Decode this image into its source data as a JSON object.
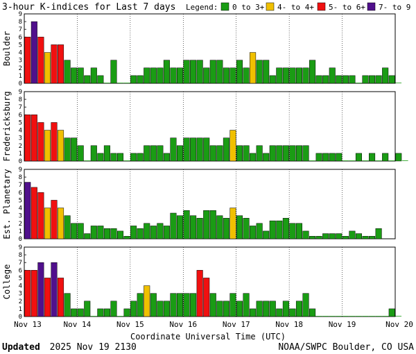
{
  "title": "3-hour K-indices for Last 7 days",
  "legend": {
    "label": "Legend:",
    "items": [
      {
        "label": "0 to 3+",
        "color": "#1a9c14"
      },
      {
        "label": "4- to 4+",
        "color": "#f0c000"
      },
      {
        "label": "5- to 6+",
        "color": "#f01010"
      },
      {
        "label": "7- to 9",
        "color": "#50108c"
      }
    ]
  },
  "footer": {
    "updated_label": "Updated",
    "updated_value": "2025 Nov 19 2130",
    "source": "NOAA/SWPC Boulder, CO USA"
  },
  "chart_data": {
    "type": "bar",
    "xlabel": "Coordinate Universal Time (UTC)",
    "x_ticks": [
      "Nov 13",
      "Nov 14",
      "Nov 15",
      "Nov 16",
      "Nov 17",
      "Nov 18",
      "Nov 19",
      "Nov 20"
    ],
    "y_ticks": [
      "0",
      "1",
      "2",
      "3",
      "4",
      "5",
      "6",
      "7",
      "8",
      "9"
    ],
    "ylim": [
      0,
      9
    ],
    "bars_per_day": 8,
    "colors": {
      "low": "#1a9c14",
      "moderate": "#f0c000",
      "high": "#f01010",
      "severe": "#50108c"
    },
    "panels": [
      {
        "name": "Boulder",
        "values": [
          6,
          8,
          6,
          4,
          5,
          5,
          3,
          2,
          2,
          1,
          2,
          1,
          0,
          3,
          0,
          0,
          1,
          1,
          2,
          2,
          2,
          3,
          2,
          2,
          3,
          3,
          3,
          2,
          3,
          3,
          2,
          2,
          3,
          2,
          4,
          3,
          3,
          1,
          2,
          2,
          2,
          2,
          2,
          3,
          1,
          1,
          2,
          1,
          1,
          1,
          0,
          1,
          1,
          1,
          2,
          1,
          0
        ]
      },
      {
        "name": "Fredericksburg",
        "values": [
          6,
          6,
          5,
          4,
          5,
          4,
          3,
          3,
          2,
          0,
          2,
          1,
          2,
          1,
          1,
          0,
          1,
          1,
          2,
          2,
          2,
          1,
          3,
          2,
          3,
          3,
          3,
          3,
          2,
          2,
          3,
          4,
          2,
          2,
          1,
          2,
          1,
          2,
          2,
          2,
          2,
          2,
          2,
          0,
          1,
          1,
          1,
          1,
          0,
          0,
          1,
          0,
          1,
          0,
          1,
          0,
          1,
          0
        ]
      },
      {
        "name": "Est. Planetary",
        "values": [
          7.33,
          6.67,
          6,
          4,
          5,
          4,
          3,
          2,
          2,
          0.67,
          1.67,
          1.67,
          1.33,
          1.33,
          1,
          0.33,
          1.67,
          1.33,
          2,
          1.67,
          2,
          1.67,
          3.33,
          3,
          3.67,
          3,
          2.67,
          3.67,
          3.67,
          3,
          2.67,
          4,
          3,
          2.67,
          1.67,
          2,
          1,
          2.33,
          2.33,
          2.67,
          2,
          2,
          1,
          0.33,
          0.33,
          0.67,
          0.67,
          0.67,
          0.33,
          1,
          0.67,
          0.33,
          0.33,
          1.33
        ]
      },
      {
        "name": "College",
        "values": [
          6,
          6,
          7,
          5,
          7,
          5,
          3,
          1,
          1,
          2,
          0,
          1,
          1,
          2,
          0,
          1,
          2,
          3,
          4,
          3,
          2,
          2,
          3,
          3,
          3,
          3,
          6,
          5,
          3,
          2,
          2,
          3,
          2,
          3,
          1,
          2,
          2,
          2,
          1,
          2,
          1,
          2,
          3,
          1,
          0,
          0,
          0,
          0,
          0,
          0,
          0,
          0,
          0,
          0,
          0,
          1,
          0
        ]
      }
    ]
  }
}
